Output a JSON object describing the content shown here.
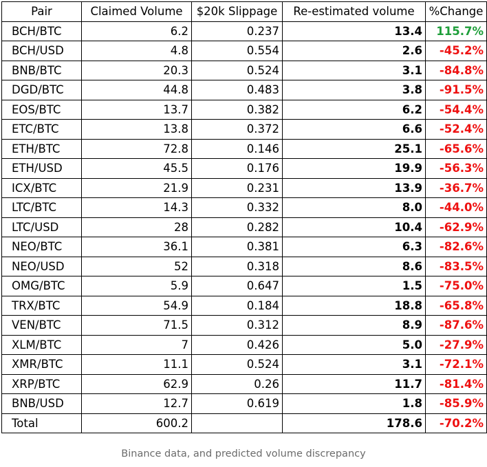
{
  "table": {
    "headers": [
      "Pair",
      "Claimed Volume",
      "$20k Slippage",
      "Re-estimated volume",
      "%Change"
    ],
    "rows": [
      [
        "BCH/BTC",
        "6.2",
        "0.237",
        "13.4",
        "115.7%"
      ],
      [
        "BCH/USD",
        "4.8",
        "0.554",
        "2.6",
        "-45.2%"
      ],
      [
        "BNB/BTC",
        "20.3",
        "0.524",
        "3.1",
        "-84.8%"
      ],
      [
        "DGD/BTC",
        "44.8",
        "0.483",
        "3.8",
        "-91.5%"
      ],
      [
        "EOS/BTC",
        "13.7",
        "0.382",
        "6.2",
        "-54.4%"
      ],
      [
        "ETC/BTC",
        "13.8",
        "0.372",
        "6.6",
        "-52.4%"
      ],
      [
        "ETH/BTC",
        "72.8",
        "0.146",
        "25.1",
        "-65.6%"
      ],
      [
        "ETH/USD",
        "45.5",
        "0.176",
        "19.9",
        "-56.3%"
      ],
      [
        "ICX/BTC",
        "21.9",
        "0.231",
        "13.9",
        "-36.7%"
      ],
      [
        "LTC/BTC",
        "14.3",
        "0.332",
        "8.0",
        "-44.0%"
      ],
      [
        "LTC/USD",
        "28",
        "0.282",
        "10.4",
        "-62.9%"
      ],
      [
        "NEO/BTC",
        "36.1",
        "0.381",
        "6.3",
        "-82.6%"
      ],
      [
        "NEO/USD",
        "52",
        "0.318",
        "8.6",
        "-83.5%"
      ],
      [
        "OMG/BTC",
        "5.9",
        "0.647",
        "1.5",
        "-75.0%"
      ],
      [
        "TRX/BTC",
        "54.9",
        "0.184",
        "18.8",
        "-65.8%"
      ],
      [
        "VEN/BTC",
        "71.5",
        "0.312",
        "8.9",
        "-87.6%"
      ],
      [
        "XLM/BTC",
        "7",
        "0.426",
        "5.0",
        "-27.9%"
      ],
      [
        "XMR/BTC",
        "11.1",
        "0.524",
        "3.1",
        "-72.1%"
      ],
      [
        "XRP/BTC",
        "62.9",
        "0.26",
        "11.7",
        "-81.4%"
      ],
      [
        "BNB/USD",
        "12.7",
        "0.619",
        "1.8",
        "-85.9%"
      ]
    ],
    "total": [
      "Total",
      "600.2",
      "",
      "178.6",
      "-70.2%"
    ]
  },
  "colors": {
    "positive_change": "#1e9e3a",
    "negative_change": "#ee1111"
  },
  "caption": "Binance data, and predicted volume discrepancy"
}
